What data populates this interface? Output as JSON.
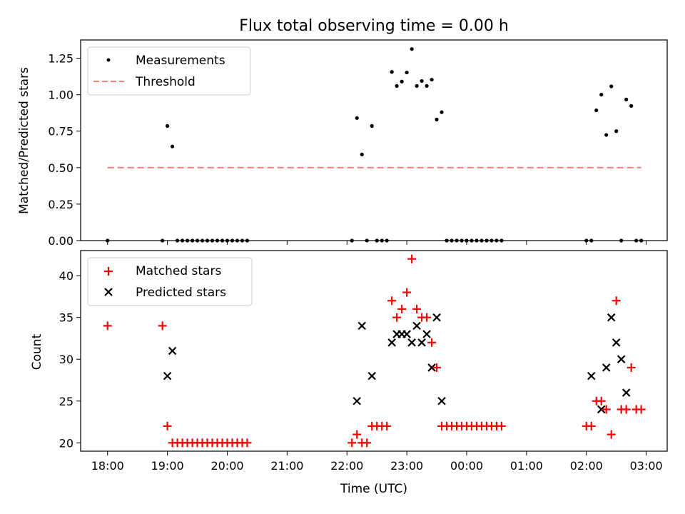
{
  "chart_data": [
    {
      "type": "scatter",
      "title": "Flux total observing time = 0.00 h",
      "ylabel": "Matched/Predicted stars",
      "xlabel": "",
      "ylim": [
        0,
        1.375
      ],
      "yticks": [
        "0.00",
        "0.25",
        "0.50",
        "0.75",
        "1.00",
        "1.25"
      ],
      "ytick_values": [
        0,
        0.25,
        0.5,
        0.75,
        1.0,
        1.25
      ],
      "xlim_hours": [
        17.55,
        27.35
      ],
      "grid": false,
      "legend_position": "upper-left",
      "series": [
        {
          "name": "Measurements",
          "kind": "point",
          "color": "#000000",
          "x": [
            "18:00",
            "18:55",
            "19:00",
            "19:05",
            "19:10",
            "19:15",
            "19:20",
            "19:25",
            "19:30",
            "19:35",
            "19:40",
            "19:45",
            "19:50",
            "19:55",
            "20:00",
            "20:05",
            "20:10",
            "20:15",
            "20:20",
            "22:05",
            "22:10",
            "22:15",
            "22:20",
            "22:25",
            "22:30",
            "22:35",
            "22:40",
            "22:45",
            "22:50",
            "22:55",
            "23:00",
            "23:05",
            "23:10",
            "23:15",
            "23:20",
            "23:25",
            "23:30",
            "23:35",
            "23:40",
            "23:45",
            "23:50",
            "23:55",
            "00:00",
            "00:05",
            "00:10",
            "00:15",
            "00:20",
            "00:25",
            "00:30",
            "00:35",
            "02:00",
            "02:05",
            "02:10",
            "02:15",
            "02:20",
            "02:25",
            "02:30",
            "02:35",
            "02:40",
            "02:45",
            "02:50",
            "02:55"
          ],
          "y": [
            0,
            0,
            0.786,
            0.645,
            0,
            0,
            0,
            0,
            0,
            0,
            0,
            0,
            0,
            0,
            0,
            0,
            0,
            0,
            0,
            0,
            0.84,
            0.59,
            0,
            0.786,
            0,
            0,
            0,
            1.156,
            1.06,
            1.09,
            1.152,
            1.313,
            1.06,
            1.094,
            1.06,
            1.103,
            0.83,
            0.88,
            0,
            0,
            0,
            0,
            0,
            0,
            0,
            0,
            0,
            0,
            0,
            0,
            0,
            0,
            0.893,
            1.0,
            0.724,
            1.057,
            0.75,
            0,
            0.967,
            0.923,
            0,
            0
          ]
        },
        {
          "name": "Threshold",
          "kind": "dashed-line",
          "color": "#ff7f7f",
          "x": [
            "18:00",
            "02:55"
          ],
          "y": [
            0.5,
            0.5
          ]
        }
      ]
    },
    {
      "type": "scatter",
      "title": "",
      "ylabel": "Count",
      "xlabel": "Time (UTC)",
      "ylim": [
        19,
        43
      ],
      "yticks": [
        "20",
        "25",
        "30",
        "35",
        "40"
      ],
      "ytick_values": [
        20,
        25,
        30,
        35,
        40
      ],
      "xticks": [
        "18:00",
        "19:00",
        "20:00",
        "21:00",
        "22:00",
        "23:00",
        "00:00",
        "01:00",
        "02:00",
        "03:00"
      ],
      "xlim_hours": [
        17.55,
        27.35
      ],
      "grid": false,
      "legend_position": "upper-left",
      "series": [
        {
          "name": "Matched stars",
          "kind": "plus",
          "color": "#ff0000",
          "x": [
            "18:00",
            "18:55",
            "19:00",
            "19:05",
            "19:10",
            "19:15",
            "19:20",
            "19:25",
            "19:30",
            "19:35",
            "19:40",
            "19:45",
            "19:50",
            "19:55",
            "20:00",
            "20:05",
            "20:10",
            "20:15",
            "20:20",
            "22:05",
            "22:10",
            "22:15",
            "22:20",
            "22:25",
            "22:30",
            "22:35",
            "22:40",
            "22:45",
            "22:50",
            "22:55",
            "23:00",
            "23:05",
            "23:10",
            "23:15",
            "23:20",
            "23:25",
            "23:30",
            "23:35",
            "23:40",
            "23:45",
            "23:50",
            "23:55",
            "00:00",
            "00:05",
            "00:10",
            "00:15",
            "00:20",
            "00:25",
            "00:30",
            "00:35",
            "02:00",
            "02:05",
            "02:10",
            "02:15",
            "02:20",
            "02:25",
            "02:30",
            "02:35",
            "02:40",
            "02:45",
            "02:50",
            "02:55"
          ],
          "y": [
            34,
            34,
            22,
            20,
            20,
            20,
            20,
            20,
            20,
            20,
            20,
            20,
            20,
            20,
            20,
            20,
            20,
            20,
            20,
            20,
            21,
            20,
            20,
            22,
            22,
            22,
            22,
            37,
            35,
            36,
            38,
            42,
            36,
            35,
            35,
            32,
            29,
            22,
            22,
            22,
            22,
            22,
            22,
            22,
            22,
            22,
            22,
            22,
            22,
            22,
            22,
            22,
            25,
            25,
            24,
            21,
            37,
            24,
            24,
            29,
            24,
            24
          ]
        },
        {
          "name": "Predicted stars",
          "kind": "x",
          "color": "#000000",
          "x": [
            "19:00",
            "19:05",
            "22:10",
            "22:15",
            "22:25",
            "22:45",
            "22:50",
            "22:55",
            "23:00",
            "23:05",
            "23:10",
            "23:15",
            "23:20",
            "23:25",
            "23:30",
            "23:35",
            "02:05",
            "02:15",
            "02:20",
            "02:25",
            "02:30",
            "02:35",
            "02:40"
          ],
          "y": [
            28,
            31,
            25,
            34,
            28,
            32,
            33,
            33,
            33,
            32,
            34,
            32,
            33,
            29,
            35,
            25,
            28,
            24,
            29,
            35,
            32,
            30,
            26
          ]
        }
      ]
    }
  ]
}
